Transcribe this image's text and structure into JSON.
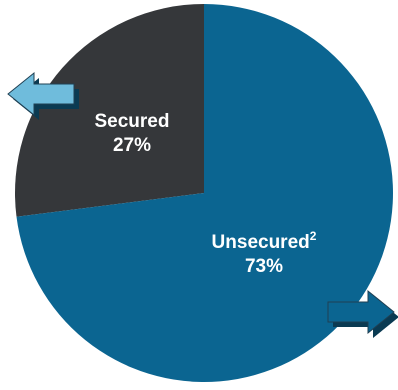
{
  "chart_data": {
    "type": "pie",
    "title": "",
    "slices": [
      {
        "label": "Secured",
        "value": 27,
        "value_label": "27%",
        "color": "#35373a"
      },
      {
        "label": "Unsecured",
        "footnote": "2",
        "value": 73,
        "value_label": "73%",
        "color": "#0b6591"
      }
    ],
    "start": "12 o'clock",
    "direction": "clockwise",
    "arrows": [
      {
        "attached_to": "Secured",
        "direction": "left",
        "color": "#6fbcdc"
      },
      {
        "attached_to": "Unsecured",
        "direction": "right",
        "color": "#0b6591"
      }
    ]
  }
}
